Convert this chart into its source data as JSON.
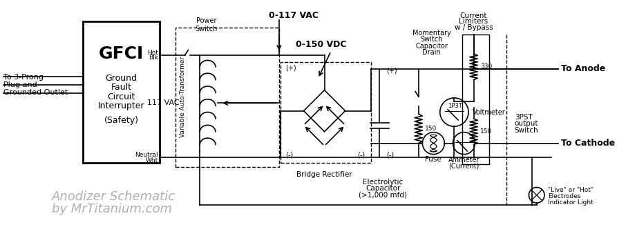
{
  "bg_color": "#ffffff",
  "line_color": "#000000",
  "watermark_color": "#b0b0b0",
  "title": "Anodizer Schematic",
  "subtitle": "by MrTitanium.com",
  "labels": {
    "gfci_title": "GFCI",
    "gfci_sub1": "Ground",
    "gfci_sub2": "Fault",
    "gfci_sub3": "Circuit",
    "gfci_sub4": "Interrupter",
    "gfci_sub5": "(Safety)",
    "left_label1": "To 3-Prong",
    "left_label2": "Plug and",
    "left_label3": "Grounded Outlet",
    "vac_label": "117 VAC",
    "transformer_label": "Variable Auto-Transformer",
    "power_switch": "Power\nSwitch",
    "hot": "Hot",
    "blk": "Blk",
    "neutral": "Neutral",
    "wht": "Wht",
    "vac_input": "0-117 VAC",
    "vdc_output": "0-150 VDC",
    "bridge_label": "Bridge Rectifier",
    "cap_label1": "Electrolytic",
    "cap_label2": "Capacitor",
    "cap_label3": "(>1,000 mfd)",
    "mom_switch1": "Momentary",
    "mom_switch2": "Switch",
    "mom_switch3": "Capacitor",
    "mom_switch4": "Drain",
    "current_lim1": "Current",
    "current_lim2": "Limiters",
    "current_lim3": "w / Bypass",
    "r330": "330",
    "r150a": "150",
    "r150b": "150",
    "voltmeter": "Voltmeter",
    "fuse": "Fuse",
    "ammeter1": "Ammeter",
    "ammeter2": "(Current)",
    "to_anode": "To Anode",
    "to_cathode": "To Cathode",
    "switch_3pst1": "3PST",
    "switch_3pst2": "output",
    "switch_3pst3": "Switch",
    "indicator1": "\"Live\" or \"Hot\"",
    "indicator2": "Electrodes",
    "indicator3": "Indicator Light",
    "plus1": "(+)",
    "minus1": "(-)",
    "plus2": "(+)",
    "minus2": "(-)",
    "label_1p3t": "1P3T"
  }
}
